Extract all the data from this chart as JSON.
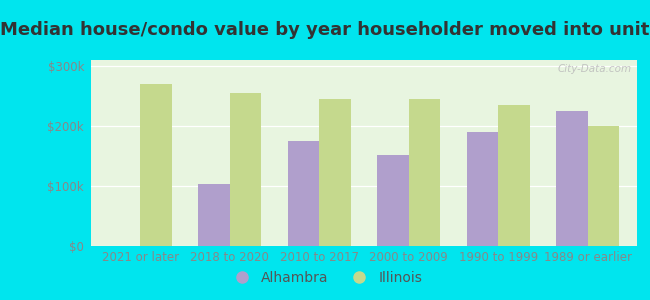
{
  "title": "Median house/condo value by year householder moved into unit",
  "categories": [
    "2021 or later",
    "2018 to 2020",
    "2010 to 2017",
    "2000 to 2009",
    "1990 to 1999",
    "1989 or earlier"
  ],
  "alhambra_values": [
    0,
    103000,
    175000,
    152000,
    190000,
    225000
  ],
  "illinois_values": [
    270000,
    255000,
    245000,
    245000,
    235000,
    200000
  ],
  "alhambra_color": "#b09fcc",
  "illinois_color": "#c5d98d",
  "background_outer": "#00e5ee",
  "background_inner_top": "#e8f5e0",
  "background_inner_bottom": "#f5fdf0",
  "ylim": [
    0,
    310000
  ],
  "yticks": [
    0,
    100000,
    200000,
    300000
  ],
  "ytick_labels": [
    "$0",
    "$100k",
    "$200k",
    "$300k"
  ],
  "bar_width": 0.35,
  "legend_labels": [
    "Alhambra",
    "Illinois"
  ],
  "watermark": "City-Data.com",
  "title_fontsize": 13,
  "tick_fontsize": 8.5,
  "legend_fontsize": 10,
  "tick_color": "#888888",
  "title_color": "#333333"
}
